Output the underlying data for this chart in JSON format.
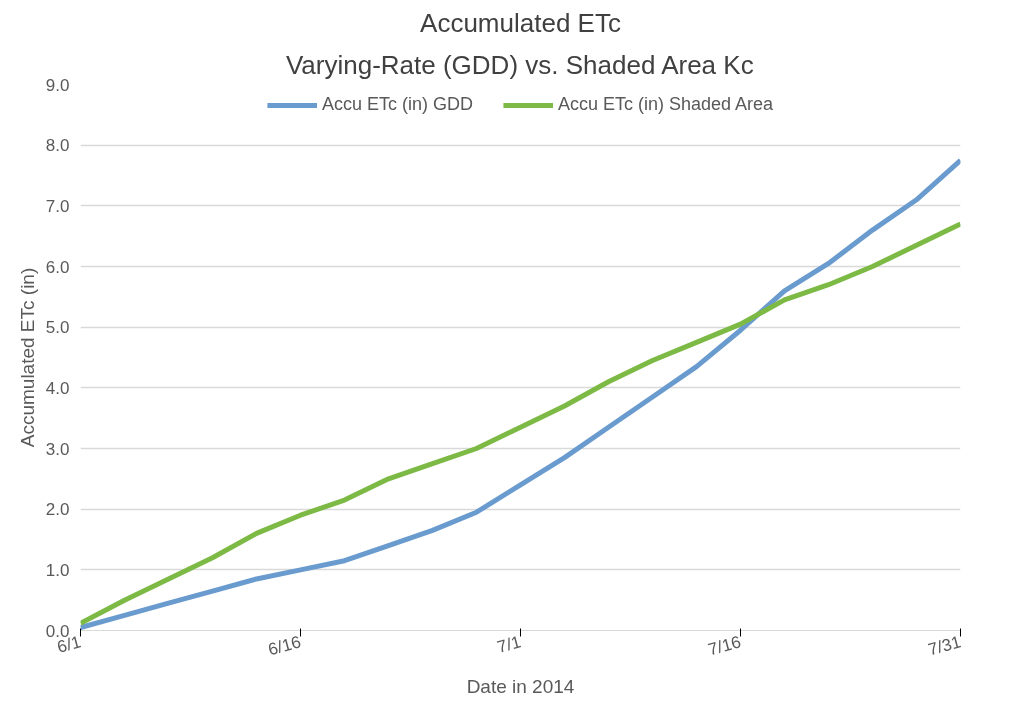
{
  "chart_data": {
    "type": "line",
    "title": "Accumulated ETc",
    "subtitle": "Varying-Rate (GDD) vs. Shaded Area Kc",
    "xlabel": "Date in 2014",
    "ylabel": "Accumulated ETc (in)",
    "x": [
      "2014-06-01",
      "2014-06-04",
      "2014-06-07",
      "2014-06-10",
      "2014-06-13",
      "2014-06-16",
      "2014-06-19",
      "2014-06-22",
      "2014-06-25",
      "2014-06-28",
      "2014-07-01",
      "2014-07-04",
      "2014-07-07",
      "2014-07-10",
      "2014-07-13",
      "2014-07-16",
      "2014-07-19",
      "2014-07-22",
      "2014-07-25",
      "2014-07-28",
      "2014-07-31"
    ],
    "series": [
      {
        "name": "Accu ETc (in) GDD",
        "color": "#6a9bcf",
        "values": [
          0.05,
          0.25,
          0.45,
          0.65,
          0.85,
          1.0,
          1.15,
          1.4,
          1.65,
          1.95,
          2.4,
          2.85,
          3.35,
          3.85,
          4.35,
          4.95,
          5.6,
          6.05,
          6.6,
          7.1,
          7.75
        ]
      },
      {
        "name": "Accu ETc (in) Shaded Area",
        "color": "#7dba45",
        "values": [
          0.12,
          0.5,
          0.85,
          1.2,
          1.6,
          1.9,
          2.15,
          2.5,
          2.75,
          3.0,
          3.35,
          3.7,
          4.1,
          4.45,
          4.75,
          5.05,
          5.45,
          5.7,
          6.0,
          6.35,
          6.7
        ]
      }
    ],
    "xlim": [
      "2014-06-01",
      "2014-07-31"
    ],
    "xticks": [
      {
        "value": "2014-06-01",
        "label": "6/1"
      },
      {
        "value": "2014-06-16",
        "label": "6/16"
      },
      {
        "value": "2014-07-01",
        "label": "7/1"
      },
      {
        "value": "2014-07-16",
        "label": "7/16"
      },
      {
        "value": "2014-07-31",
        "label": "7/31"
      }
    ],
    "ylim": [
      0,
      9
    ],
    "yticks": [
      {
        "value": 0,
        "label": "0.0"
      },
      {
        "value": 1,
        "label": "1.0"
      },
      {
        "value": 2,
        "label": "2.0"
      },
      {
        "value": 3,
        "label": "3.0"
      },
      {
        "value": 4,
        "label": "4.0"
      },
      {
        "value": 5,
        "label": "5.0"
      },
      {
        "value": 6,
        "label": "6.0"
      },
      {
        "value": 7,
        "label": "7.0"
      },
      {
        "value": 8,
        "label": "8.0"
      },
      {
        "value": 9,
        "label": "9.0"
      }
    ],
    "grid": "y",
    "legend": "top",
    "marker": "none",
    "line_style": "solid"
  }
}
